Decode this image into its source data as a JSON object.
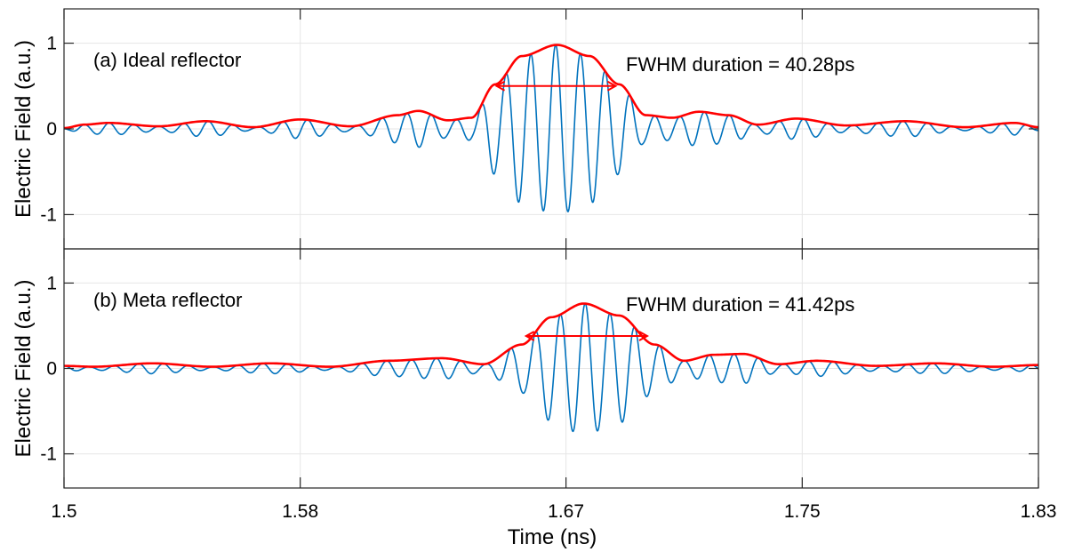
{
  "chart_data": {
    "type": "line",
    "xlabel": "Time (ns)",
    "x_ticks": [
      "1.5",
      "1.58",
      "1.67",
      "1.75",
      "1.83"
    ],
    "x_tick_values": [
      1.5,
      1.58,
      1.67,
      1.75,
      1.83
    ],
    "xlim": [
      1.5,
      1.83
    ],
    "grid": true,
    "colors": {
      "signal": "#0072BD",
      "envelope": "#FF0000",
      "axes": "#262626",
      "grid": "#e6e6e6"
    },
    "panels": [
      {
        "label": "(a) Ideal reflector",
        "ylabel": "Electric Field (a.u.)",
        "ylim": [
          -1.4,
          1.4
        ],
        "y_ticks": [
          "1",
          "0",
          "-1"
        ],
        "y_tick_values": [
          1,
          0,
          -1
        ],
        "annotation": "FWHM duration = 40.28ps",
        "fwhm_ps": 40.28,
        "fwhm_arrow": {
          "x_start": 1.6465,
          "x_end": 1.6868,
          "y": 0.5
        },
        "series": [
          {
            "role": "field",
            "carrier_period_ns": 0.0084,
            "peak_x": 1.6665,
            "peak_min_y": -1.0,
            "peak_max_y": 0.98
          },
          {
            "role": "envelope",
            "x": [
              1.5,
              1.507,
              1.515,
              1.532,
              1.548,
              1.564,
              1.58,
              1.597,
              1.613,
              1.62,
              1.63,
              1.638,
              1.646,
              1.655,
              1.667,
              1.678,
              1.688,
              1.697,
              1.706,
              1.715,
              1.725,
              1.735,
              1.748,
              1.765,
              1.785,
              1.805,
              1.822,
              1.83
            ],
            "y": [
              0.01,
              0.05,
              0.07,
              0.03,
              0.09,
              0.02,
              0.11,
              0.03,
              0.16,
              0.21,
              0.1,
              0.13,
              0.52,
              0.85,
              0.98,
              0.85,
              0.52,
              0.16,
              0.13,
              0.2,
              0.16,
              0.05,
              0.12,
              0.04,
              0.09,
              0.02,
              0.07,
              0.02
            ]
          }
        ]
      },
      {
        "label": "(b) Meta reflector",
        "ylabel": "Electric Field (a.u.)",
        "ylim": [
          -1.4,
          1.4
        ],
        "y_ticks": [
          "1",
          "0",
          "-1"
        ],
        "y_tick_values": [
          1,
          0,
          -1
        ],
        "annotation": "FWHM duration = 41.42ps",
        "fwhm_ps": 41.42,
        "fwhm_arrow": {
          "x_start": 1.6565,
          "x_end": 1.6975,
          "y": 0.38
        },
        "series": [
          {
            "role": "field",
            "carrier_period_ns": 0.0084,
            "peak_x": 1.6765,
            "peak_min_y": -0.78,
            "peak_max_y": 0.76
          },
          {
            "role": "envelope",
            "x": [
              1.5,
              1.51,
              1.53,
              1.55,
              1.57,
              1.59,
              1.61,
              1.628,
              1.642,
              1.655,
              1.665,
              1.676,
              1.688,
              1.7,
              1.71,
              1.72,
              1.73,
              1.742,
              1.755,
              1.775,
              1.795,
              1.815,
              1.83
            ],
            "y": [
              0.03,
              0.02,
              0.06,
              0.02,
              0.06,
              0.02,
              0.09,
              0.12,
              0.05,
              0.28,
              0.6,
              0.76,
              0.62,
              0.28,
              0.09,
              0.16,
              0.17,
              0.05,
              0.09,
              0.03,
              0.06,
              0.02,
              0.04
            ]
          }
        ]
      }
    ]
  }
}
